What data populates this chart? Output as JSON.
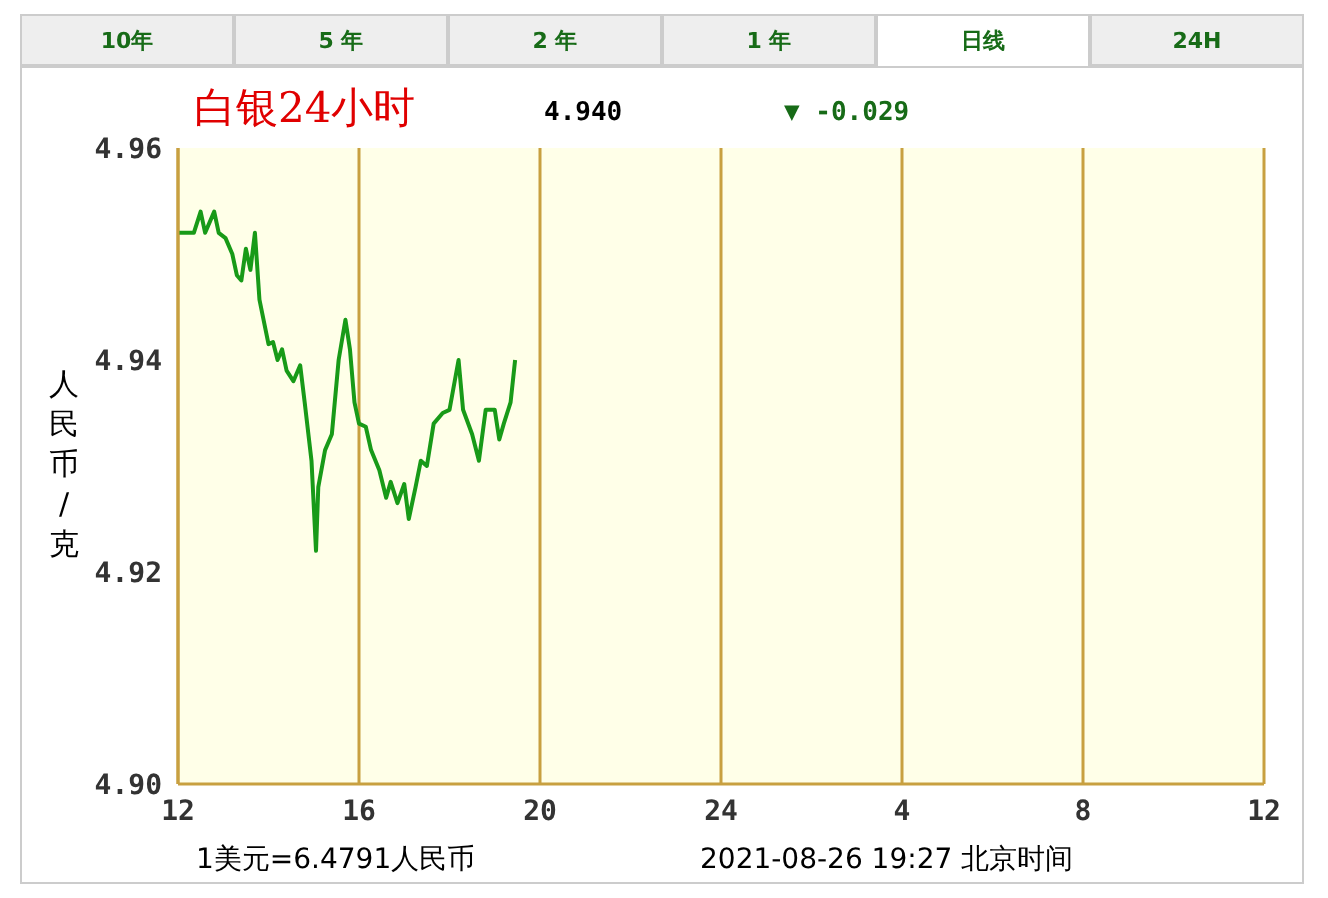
{
  "chart_data": {
    "type": "line",
    "title": "白银24小时",
    "ylabel": "人民币/克",
    "annotations": [
      "10年",
      "5 年",
      "2 年",
      "1 年",
      "日线",
      "24H",
      "4.940",
      "▼ -0.029",
      "1美元=6.4791人民币",
      "2021-08-26 19:27 北京时间"
    ],
    "x": [
      "2021-08-26T12:00",
      "2021-08-26T12:21",
      "2021-08-26T12:30",
      "2021-08-26T12:36",
      "2021-08-26T12:48",
      "2021-08-26T12:54",
      "2021-08-26T13:03",
      "2021-08-26T13:12",
      "2021-08-26T13:18",
      "2021-08-26T13:24",
      "2021-08-26T13:30",
      "2021-08-26T13:36",
      "2021-08-26T13:42",
      "2021-08-26T13:48",
      "2021-08-26T14:00",
      "2021-08-26T14:06",
      "2021-08-26T14:12",
      "2021-08-26T14:18",
      "2021-08-26T14:24",
      "2021-08-26T14:33",
      "2021-08-26T14:42",
      "2021-08-26T14:48",
      "2021-08-26T14:57",
      "2021-08-26T15:03",
      "2021-08-26T15:06",
      "2021-08-26T15:15",
      "2021-08-26T15:24",
      "2021-08-26T15:33",
      "2021-08-26T15:42",
      "2021-08-26T15:48",
      "2021-08-26T15:54",
      "2021-08-26T16:00",
      "2021-08-26T16:09",
      "2021-08-26T16:16",
      "2021-08-26T16:27",
      "2021-08-26T16:36",
      "2021-08-26T16:42",
      "2021-08-26T16:51",
      "2021-08-26T17:00",
      "2021-08-26T17:06",
      "2021-08-26T17:15",
      "2021-08-26T17:22",
      "2021-08-26T17:30",
      "2021-08-26T17:39",
      "2021-08-26T17:51",
      "2021-08-26T18:00",
      "2021-08-26T18:12",
      "2021-08-26T18:18",
      "2021-08-26T18:30",
      "2021-08-26T18:39",
      "2021-08-26T18:48",
      "2021-08-26T19:00",
      "2021-08-26T19:06",
      "2021-08-26T19:12",
      "2021-08-26T19:21",
      "2021-08-26T19:27"
    ],
    "series": [
      {
        "color": "#189a18",
        "values": [
          4.952,
          4.952,
          4.954,
          4.952,
          4.954,
          4.952,
          4.9515,
          4.95,
          4.948,
          4.9475,
          4.9505,
          4.9485,
          4.952,
          4.9457,
          4.9415,
          4.9417,
          4.94,
          4.941,
          4.939,
          4.938,
          4.9395,
          4.936,
          4.9305,
          4.922,
          4.928,
          4.9315,
          4.933,
          4.94,
          4.9438,
          4.941,
          4.936,
          4.934,
          4.9337,
          4.9315,
          4.9296,
          4.927,
          4.9285,
          4.9265,
          4.9283,
          4.925,
          4.928,
          4.9305,
          4.93,
          4.934,
          4.935,
          4.9353,
          4.94,
          4.9353,
          4.933,
          4.9305,
          4.9353,
          4.9353,
          4.9325,
          4.934,
          4.936,
          4.94
        ]
      }
    ],
    "xlim": [
      "2021-08-26T12:00",
      "2021-08-27T12:00"
    ],
    "xticks": [
      {
        "value": "2021-08-26T12:00",
        "label": "12"
      },
      {
        "value": "2021-08-26T16:00",
        "label": "16"
      },
      {
        "value": "2021-08-26T20:00",
        "label": "20"
      },
      {
        "value": "2021-08-27T00:00",
        "label": "24"
      },
      {
        "value": "2021-08-27T04:00",
        "label": "4"
      },
      {
        "value": "2021-08-27T08:00",
        "label": "8"
      },
      {
        "value": "2021-08-27T12:00",
        "label": "12"
      }
    ],
    "ylim": [
      4.9,
      4.96
    ],
    "yticks": [
      {
        "value": 4.9,
        "label": "4.90"
      },
      {
        "value": 4.92,
        "label": "4.92"
      },
      {
        "value": 4.94,
        "label": "4.94"
      },
      {
        "value": 4.96,
        "label": "4.96"
      }
    ],
    "grid": true,
    "legend": false,
    "marker": "none",
    "line_style": "solid"
  }
}
